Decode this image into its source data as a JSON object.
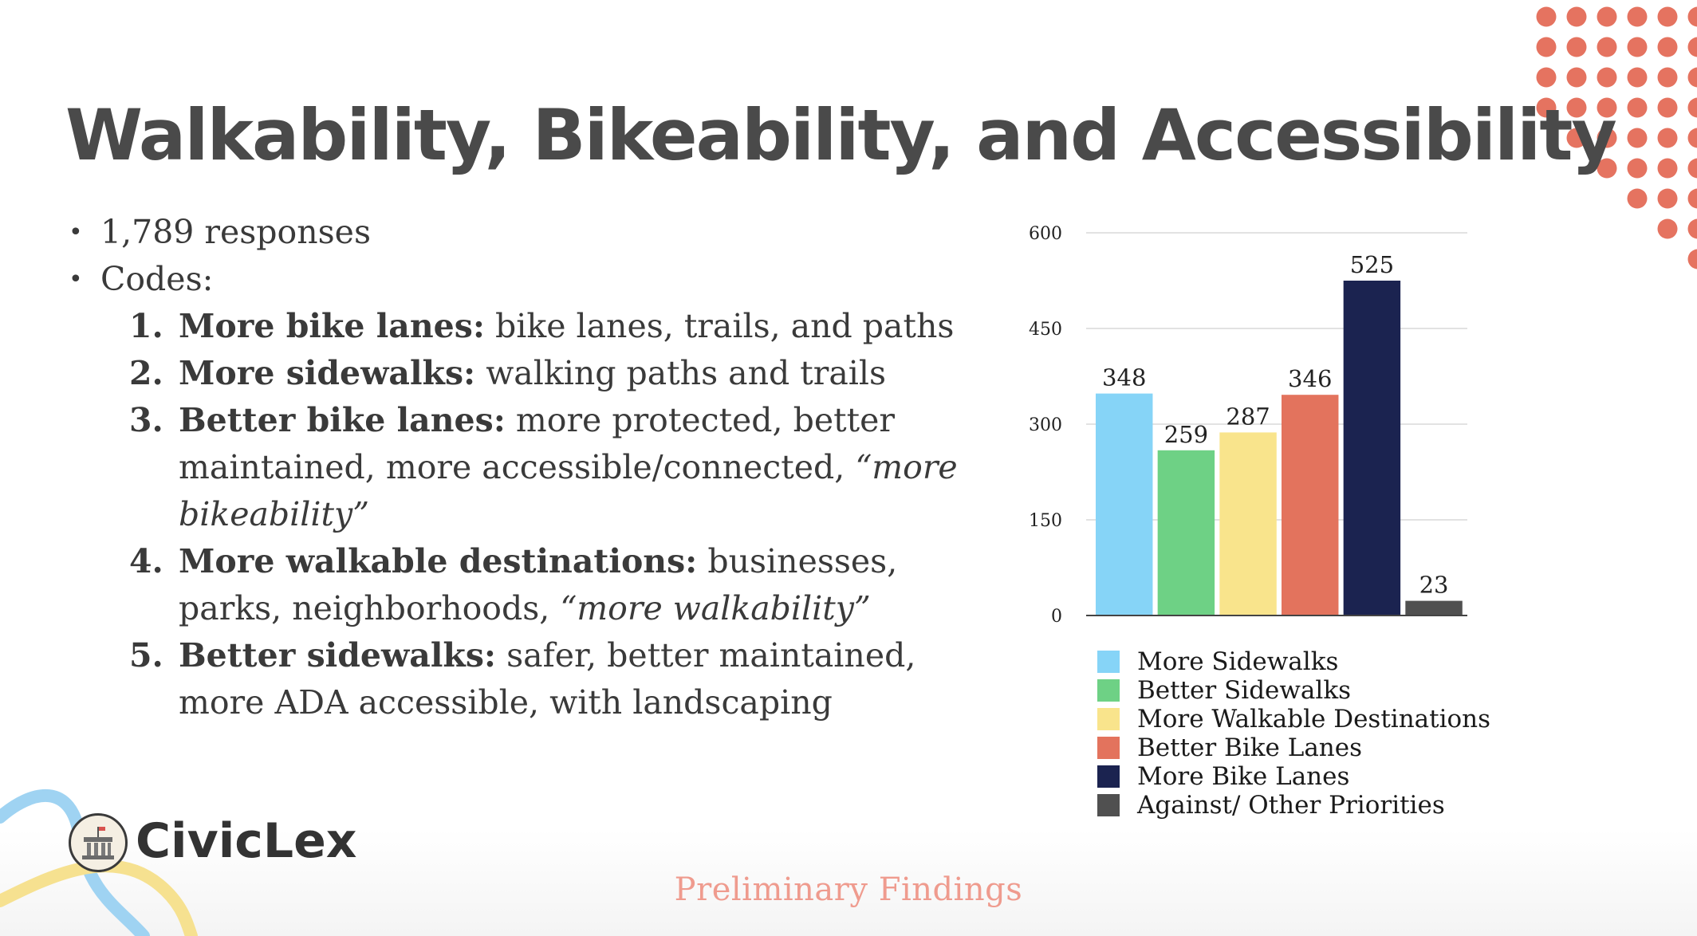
{
  "slide": {
    "title": "Walkability, Bikeability, and Accessibility",
    "bullets": [
      "1,789 responses",
      "Codes:"
    ],
    "codes": [
      {
        "num": "1.",
        "label": "More bike lanes:",
        "rest": " bike lanes, trails, and paths",
        "italic": ""
      },
      {
        "num": "2.",
        "label": "More sidewalks:",
        "rest": " walking paths and trails",
        "italic": ""
      },
      {
        "num": "3.",
        "label": "Better bike lanes:",
        "rest": " more protected, better maintained, more accessible/connected, ",
        "italic": "“more bikeability”"
      },
      {
        "num": "4.",
        "label": "More walkable destinations:",
        "rest": " businesses, parks, neighborhoods, ",
        "italic": "“more walkability”"
      },
      {
        "num": "5.",
        "label": "Better sidewalks:",
        "rest": " safer, better maintained, more ADA accessible, with landscaping",
        "italic": ""
      }
    ],
    "footer": "Preliminary Findings",
    "logo_text": "CivicLex"
  },
  "colors": {
    "accent_dots": "#e57360",
    "footer": "#ef9b8e",
    "title": "#4a4a4a"
  },
  "chart_data": {
    "type": "bar",
    "title": "",
    "xlabel": "",
    "ylabel": "",
    "ylim": [
      0,
      600
    ],
    "yticks": [
      0,
      150,
      300,
      450,
      600
    ],
    "grid": true,
    "legend_position": "bottom",
    "categories": [
      "More Sidewalks",
      "Better Sidewalks",
      "More Walkable Destinations",
      "Better Bike Lanes",
      "More Bike Lanes",
      "Against/ Other Priorities"
    ],
    "values": [
      348,
      259,
      287,
      346,
      525,
      23
    ],
    "colors": [
      "#86d4f7",
      "#6ed185",
      "#f9e48c",
      "#e3735d",
      "#1b2350",
      "#505050"
    ]
  }
}
